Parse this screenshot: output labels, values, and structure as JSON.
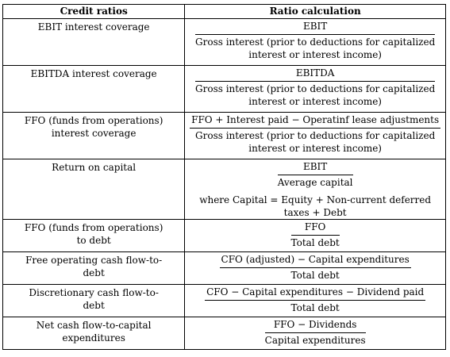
{
  "table": {
    "headers": {
      "credit_ratios": "Credit ratios",
      "ratio_calculation": "Ratio calculation"
    },
    "rows": [
      {
        "name": "EBIT interest coverage",
        "numerator": "EBIT",
        "denominator_line1": "Gross interest (prior to deductions for capitalized",
        "denominator_line2": "interest or interest income)"
      },
      {
        "name": "EBITDA interest coverage",
        "numerator": "EBITDA",
        "denominator_line1": "Gross interest (prior to deductions for capitalized",
        "denominator_line2": "interest or interest income)"
      },
      {
        "name_line1": "FFO (funds from operations)",
        "name_line2": "interest coverage",
        "numerator": "FFO + Interest paid − Operatinf lease adjustments",
        "denominator_line1": "Gross interest (prior to deductions for capitalized",
        "denominator_line2": "interest or interest income)"
      },
      {
        "name": "Return on capital",
        "numerator": "EBIT",
        "denominator": "Average capital",
        "note": "where Capital = Equity + Non-current deferred taxes + Debt"
      },
      {
        "name_line1": "FFO (funds from operations)",
        "name_line2": "to debt",
        "numerator": "FFO",
        "denominator": "Total debt"
      },
      {
        "name_line1": "Free operating cash flow-to-",
        "name_line2": "debt",
        "numerator": "CFO (adjusted) − Capital expenditures",
        "denominator": "Total debt"
      },
      {
        "name_line1": "Discretionary cash flow-to-",
        "name_line2": "debt",
        "numerator": "CFO − Capital expenditures − Dividend paid",
        "denominator": "Total debt"
      },
      {
        "name_line1": "Net cash flow-to-capital",
        "name_line2": "expenditures",
        "numerator": "FFO − Dividends",
        "denominator": "Capital expenditures"
      }
    ]
  }
}
